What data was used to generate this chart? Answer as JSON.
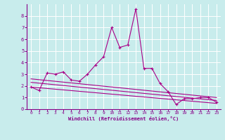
{
  "title": "",
  "xlabel": "Windchill (Refroidissement éolien,°C)",
  "ylabel": "",
  "bg_color": "#c8ecec",
  "grid_color": "#ffffff",
  "line_color": "#aa0088",
  "xlim": [
    -0.5,
    23.5
  ],
  "ylim": [
    0,
    9
  ],
  "xticks": [
    0,
    1,
    2,
    3,
    4,
    5,
    6,
    7,
    8,
    9,
    10,
    11,
    12,
    13,
    14,
    15,
    16,
    17,
    18,
    19,
    20,
    21,
    22,
    23
  ],
  "yticks": [
    0,
    1,
    2,
    3,
    4,
    5,
    6,
    7,
    8
  ],
  "line1_x": [
    0,
    1,
    2,
    3,
    4,
    5,
    6,
    7,
    8,
    9,
    10,
    11,
    12,
    13,
    14,
    15,
    16,
    17,
    18,
    19,
    20,
    21,
    22,
    23
  ],
  "line1_y": [
    1.9,
    1.6,
    3.1,
    3.0,
    3.2,
    2.5,
    2.4,
    3.0,
    3.8,
    4.5,
    7.0,
    5.3,
    5.5,
    8.6,
    3.5,
    3.5,
    2.2,
    1.5,
    0.4,
    0.9,
    0.9,
    1.0,
    1.0,
    0.6
  ],
  "line2_x": [
    0,
    23
  ],
  "line2_y": [
    2.6,
    1.0
  ],
  "line3_x": [
    0,
    23
  ],
  "line3_y": [
    2.3,
    0.75
  ],
  "line4_x": [
    0,
    23
  ],
  "line4_y": [
    1.9,
    0.5
  ]
}
